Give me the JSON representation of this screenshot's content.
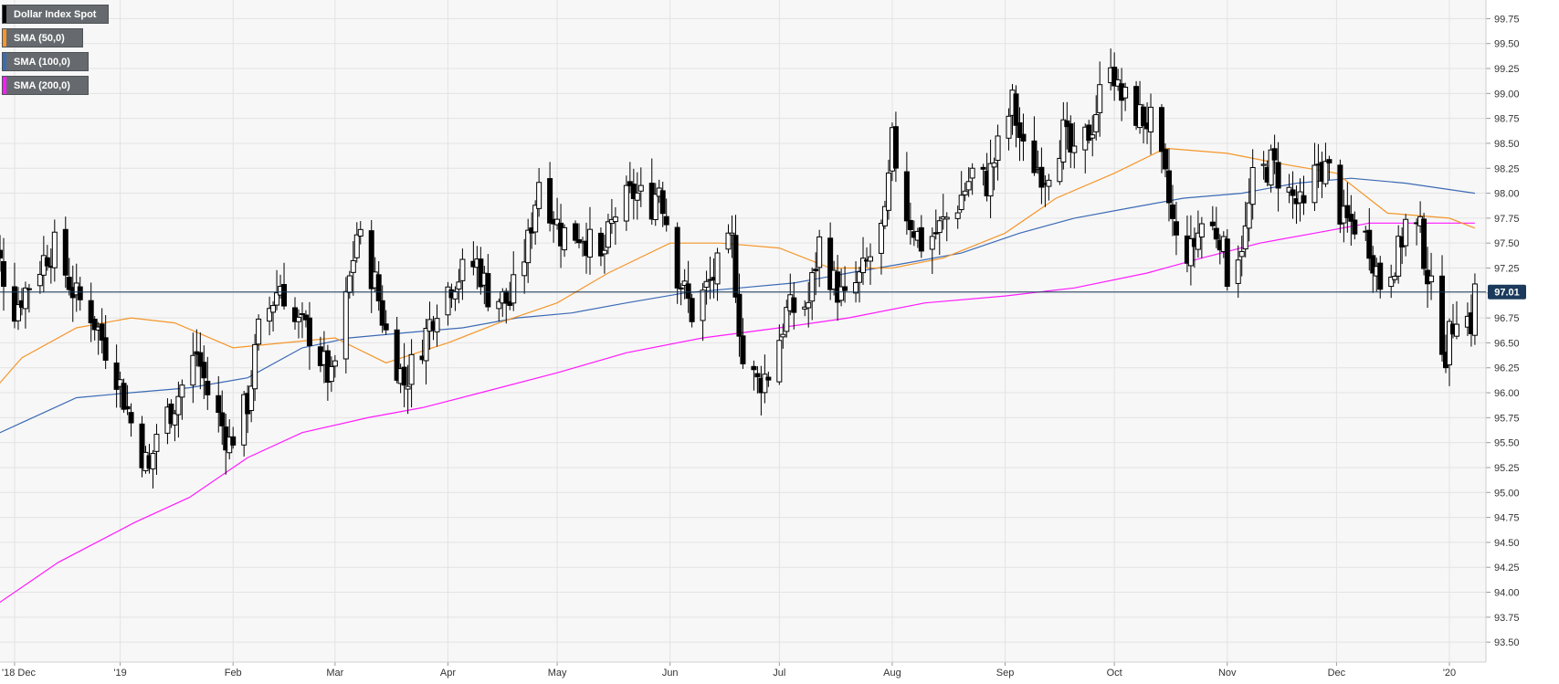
{
  "legend": {
    "main": "Dollar Index Spot",
    "sma50": "SMA (50,0)",
    "sma100": "SMA (100,0)",
    "sma200": "SMA (200,0)"
  },
  "colors": {
    "background": "#f7f7f7",
    "grid": "#e3e3e3",
    "sma50": "#f5962a",
    "sma100": "#3b6ab5",
    "sma200": "#ff1aff",
    "price_line": "#1b3a5c",
    "price_tag": "#1b3a5c"
  },
  "chart_data": {
    "type": "candlestick",
    "symbol": "Dollar Index Spot",
    "period": "daily",
    "y_range": [
      93.3,
      99.9
    ],
    "y_ticks": [
      "99.75",
      "99.50",
      "99.25",
      "99.00",
      "98.75",
      "98.50",
      "98.25",
      "98.00",
      "97.75",
      "97.50",
      "97.25",
      "97.00",
      "96.75",
      "96.50",
      "96.25",
      "96.00",
      "95.75",
      "95.50",
      "95.25",
      "95.00",
      "94.75",
      "94.50",
      "94.25",
      "94.00",
      "93.75",
      "93.50"
    ],
    "x_ticks": [
      "'18 Dec",
      "'19",
      "Feb",
      "Mar",
      "Apr",
      "May",
      "Jun",
      "Jul",
      "Aug",
      "Sep",
      "Oct",
      "Nov",
      "Dec",
      "'20"
    ],
    "current_price": "97.01",
    "grid": true,
    "legend_position": "top-left",
    "series": [
      {
        "name": "Dollar Index Spot",
        "kind": "candles",
        "waypoints": [
          [
            "2018-11-23",
            97.0
          ],
          [
            "2018-11-28",
            97.4
          ],
          [
            "2018-12-03",
            96.85
          ],
          [
            "2018-12-12",
            97.4
          ],
          [
            "2018-12-14",
            97.45
          ],
          [
            "2018-12-20",
            96.95
          ],
          [
            "2018-12-24",
            96.8
          ],
          [
            "2018-12-31",
            96.2
          ],
          [
            "2019-01-04",
            95.7
          ],
          [
            "2019-01-09",
            95.2
          ],
          [
            "2019-01-11",
            95.6
          ],
          [
            "2019-01-16",
            95.9
          ],
          [
            "2019-01-22",
            96.4
          ],
          [
            "2019-01-25",
            96.0
          ],
          [
            "2019-01-31",
            95.5
          ],
          [
            "2019-02-05",
            95.9
          ],
          [
            "2019-02-08",
            96.6
          ],
          [
            "2019-02-14",
            97.1
          ],
          [
            "2019-02-18",
            96.7
          ],
          [
            "2019-02-22",
            96.6
          ],
          [
            "2019-02-28",
            96.1
          ],
          [
            "2019-03-04",
            96.9
          ],
          [
            "2019-03-07",
            97.6
          ],
          [
            "2019-03-12",
            97.1
          ],
          [
            "2019-03-15",
            96.6
          ],
          [
            "2019-03-20",
            96.1
          ],
          [
            "2019-03-25",
            96.5
          ],
          [
            "2019-03-29",
            96.9
          ],
          [
            "2019-04-03",
            97.15
          ],
          [
            "2019-04-09",
            97.3
          ],
          [
            "2019-04-12",
            97.0
          ],
          [
            "2019-04-18",
            96.9
          ],
          [
            "2019-04-23",
            97.5
          ],
          [
            "2019-04-26",
            98.15
          ],
          [
            "2019-05-02",
            97.6
          ],
          [
            "2019-05-08",
            97.6
          ],
          [
            "2019-05-13",
            97.3
          ],
          [
            "2019-05-17",
            97.8
          ],
          [
            "2019-05-22",
            98.0
          ],
          [
            "2019-05-27",
            97.9
          ],
          [
            "2019-05-29",
            98.1
          ],
          [
            "2019-06-03",
            97.2
          ],
          [
            "2019-06-07",
            96.8
          ],
          [
            "2019-06-12",
            97.1
          ],
          [
            "2019-06-18",
            97.5
          ],
          [
            "2019-06-21",
            96.3
          ],
          [
            "2019-06-25",
            96.1
          ],
          [
            "2019-06-28",
            96.2
          ],
          [
            "2019-07-03",
            96.8
          ],
          [
            "2019-07-09",
            96.9
          ],
          [
            "2019-07-12",
            97.5
          ],
          [
            "2019-07-16",
            97.1
          ],
          [
            "2019-07-19",
            96.9
          ],
          [
            "2019-07-24",
            97.2
          ],
          [
            "2019-07-30",
            97.7
          ],
          [
            "2019-08-01",
            98.5
          ],
          [
            "2019-08-05",
            97.8
          ],
          [
            "2019-08-09",
            97.5
          ],
          [
            "2019-08-13",
            97.6
          ],
          [
            "2019-08-19",
            97.9
          ],
          [
            "2019-08-23",
            98.2
          ],
          [
            "2019-08-27",
            98.1
          ],
          [
            "2019-09-03",
            98.9
          ],
          [
            "2019-09-06",
            98.4
          ],
          [
            "2019-09-12",
            98.2
          ],
          [
            "2019-09-17",
            98.6
          ],
          [
            "2019-09-20",
            98.3
          ],
          [
            "2019-09-25",
            98.7
          ],
          [
            "2019-09-30",
            99.4
          ],
          [
            "2019-10-02",
            99.0
          ],
          [
            "2019-10-07",
            98.8
          ],
          [
            "2019-10-11",
            98.7
          ],
          [
            "2019-10-15",
            98.1
          ],
          [
            "2019-10-18",
            97.5
          ],
          [
            "2019-10-22",
            97.4
          ],
          [
            "2019-10-25",
            97.7
          ],
          [
            "2019-10-30",
            97.6
          ],
          [
            "2019-11-01",
            97.2
          ],
          [
            "2019-11-06",
            97.6
          ],
          [
            "2019-11-08",
            98.1
          ],
          [
            "2019-11-13",
            98.3
          ],
          [
            "2019-11-18",
            98.0
          ],
          [
            "2019-11-22",
            97.8
          ],
          [
            "2019-11-26",
            98.3
          ],
          [
            "2019-11-29",
            98.2
          ],
          [
            "2019-12-03",
            97.7
          ],
          [
            "2019-12-06",
            97.7
          ],
          [
            "2019-12-10",
            97.5
          ],
          [
            "2019-12-13",
            97.1
          ],
          [
            "2019-12-18",
            97.4
          ],
          [
            "2019-12-20",
            97.7
          ],
          [
            "2019-12-24",
            97.6
          ],
          [
            "2019-12-27",
            97.0
          ],
          [
            "2019-12-31",
            96.4
          ],
          [
            "2020-01-03",
            96.85
          ],
          [
            "2020-01-07",
            96.7
          ],
          [
            "2020-01-08",
            97.01
          ]
        ]
      },
      {
        "name": "SMA (50,0)",
        "kind": "line",
        "points": [
          [
            "2018-11-23",
            95.85
          ],
          [
            "2018-12-05",
            96.35
          ],
          [
            "2018-12-20",
            96.65
          ],
          [
            "2019-01-04",
            96.75
          ],
          [
            "2019-01-16",
            96.7
          ],
          [
            "2019-02-01",
            96.45
          ],
          [
            "2019-02-15",
            96.5
          ],
          [
            "2019-03-01",
            96.55
          ],
          [
            "2019-03-15",
            96.3
          ],
          [
            "2019-04-01",
            96.5
          ],
          [
            "2019-04-15",
            96.7
          ],
          [
            "2019-05-01",
            96.9
          ],
          [
            "2019-05-15",
            97.2
          ],
          [
            "2019-06-01",
            97.5
          ],
          [
            "2019-06-15",
            97.5
          ],
          [
            "2019-07-01",
            97.45
          ],
          [
            "2019-07-15",
            97.25
          ],
          [
            "2019-08-01",
            97.25
          ],
          [
            "2019-08-15",
            97.35
          ],
          [
            "2019-09-01",
            97.6
          ],
          [
            "2019-09-15",
            97.95
          ],
          [
            "2019-10-01",
            98.2
          ],
          [
            "2019-10-15",
            98.45
          ],
          [
            "2019-11-01",
            98.4
          ],
          [
            "2019-11-15",
            98.3
          ],
          [
            "2019-12-01",
            98.2
          ],
          [
            "2019-12-15",
            97.8
          ],
          [
            "2020-01-01",
            97.75
          ],
          [
            "2020-01-08",
            97.65
          ]
        ]
      },
      {
        "name": "SMA (100,0)",
        "kind": "line",
        "points": [
          [
            "2018-11-23",
            95.5
          ],
          [
            "2018-12-05",
            95.7
          ],
          [
            "2018-12-20",
            95.95
          ],
          [
            "2019-01-04",
            96.0
          ],
          [
            "2019-01-20",
            96.05
          ],
          [
            "2019-02-05",
            96.15
          ],
          [
            "2019-02-20",
            96.45
          ],
          [
            "2019-03-05",
            96.55
          ],
          [
            "2019-03-20",
            96.6
          ],
          [
            "2019-04-05",
            96.65
          ],
          [
            "2019-04-20",
            96.75
          ],
          [
            "2019-05-05",
            96.8
          ],
          [
            "2019-05-20",
            96.9
          ],
          [
            "2019-06-05",
            97.0
          ],
          [
            "2019-06-20",
            97.05
          ],
          [
            "2019-07-05",
            97.1
          ],
          [
            "2019-07-20",
            97.2
          ],
          [
            "2019-08-05",
            97.3
          ],
          [
            "2019-08-20",
            97.4
          ],
          [
            "2019-09-05",
            97.6
          ],
          [
            "2019-09-20",
            97.75
          ],
          [
            "2019-10-05",
            97.85
          ],
          [
            "2019-10-20",
            97.95
          ],
          [
            "2019-11-05",
            98.0
          ],
          [
            "2019-11-20",
            98.1
          ],
          [
            "2019-12-05",
            98.15
          ],
          [
            "2019-12-20",
            98.1
          ],
          [
            "2020-01-08",
            98.0
          ]
        ]
      },
      {
        "name": "SMA (200,0)",
        "kind": "line",
        "points": [
          [
            "2018-11-23",
            93.75
          ],
          [
            "2018-12-15",
            94.3
          ],
          [
            "2019-01-05",
            94.7
          ],
          [
            "2019-01-20",
            94.95
          ],
          [
            "2019-02-05",
            95.35
          ],
          [
            "2019-02-20",
            95.6
          ],
          [
            "2019-03-10",
            95.75
          ],
          [
            "2019-03-25",
            95.85
          ],
          [
            "2019-04-10",
            96.0
          ],
          [
            "2019-05-01",
            96.2
          ],
          [
            "2019-05-20",
            96.4
          ],
          [
            "2019-06-10",
            96.55
          ],
          [
            "2019-07-01",
            96.65
          ],
          [
            "2019-07-20",
            96.75
          ],
          [
            "2019-08-10",
            96.9
          ],
          [
            "2019-09-01",
            96.97
          ],
          [
            "2019-09-20",
            97.05
          ],
          [
            "2019-10-10",
            97.2
          ],
          [
            "2019-10-25",
            97.35
          ],
          [
            "2019-11-10",
            97.5
          ],
          [
            "2019-11-25",
            97.6
          ],
          [
            "2019-12-10",
            97.7
          ],
          [
            "2020-01-01",
            97.7
          ],
          [
            "2020-01-08",
            97.7
          ]
        ]
      }
    ]
  }
}
